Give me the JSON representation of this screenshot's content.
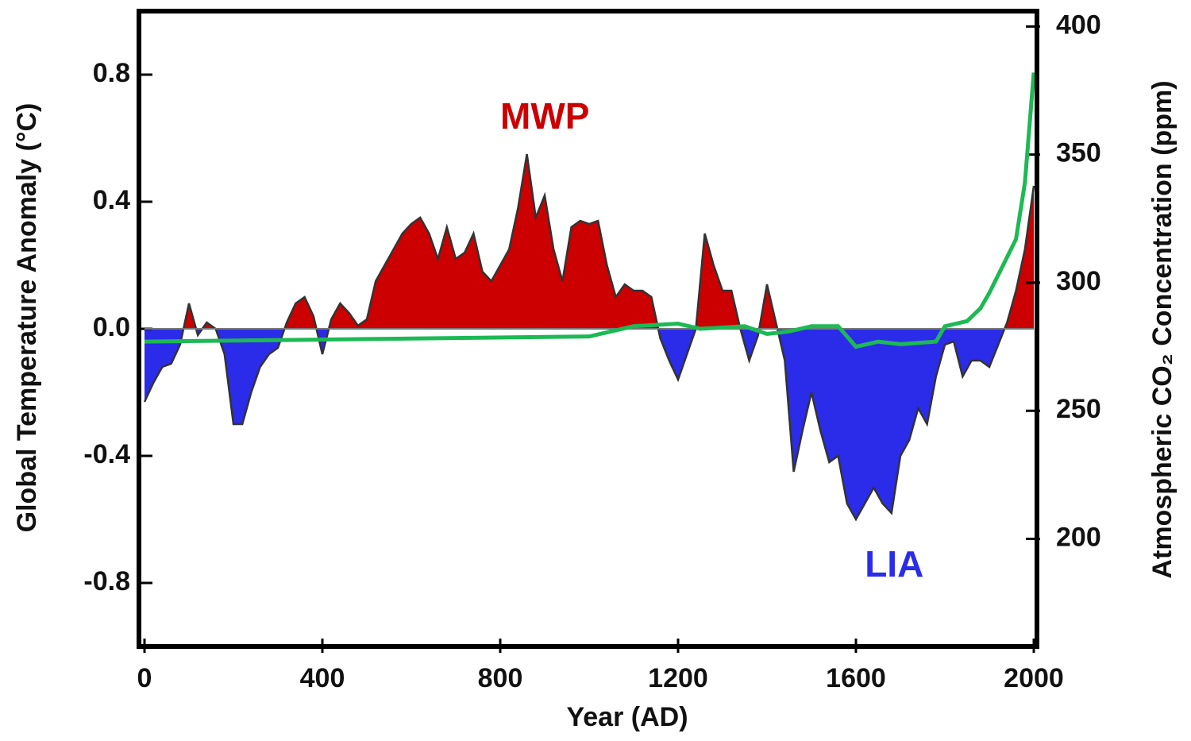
{
  "chart_data": {
    "type": "area",
    "xlabel": "Year (AD)",
    "ylabel": "Global Temperature Anomaly (°C)",
    "y2label": "Atmospheric CO₂ Concentration (ppm)",
    "xlim": [
      0,
      2000
    ],
    "xticks": [
      0,
      400,
      800,
      1200,
      1600,
      2000
    ],
    "ylim": [
      -1,
      1
    ],
    "yticks": [
      -0.8,
      -0.4,
      {
        "value": 0,
        "label": "0.0"
      },
      0.4,
      0.8
    ],
    "y2lim": [
      158,
      406
    ],
    "y2ticks": [
      200,
      250,
      300,
      350,
      400
    ],
    "annotations": [
      {
        "text": "MWP",
        "color": "#cc0000",
        "x": 800,
        "y": 0.66
      },
      {
        "text": "LIA",
        "color": "#2b2bea",
        "x": 1620,
        "y": -0.75
      }
    ],
    "series": [
      {
        "name": "Temperature anomaly",
        "positive_color": "#cc0000",
        "negative_color": "#2b2bea",
        "x": [
          0,
          20,
          40,
          60,
          80,
          100,
          120,
          140,
          160,
          180,
          200,
          220,
          240,
          260,
          280,
          300,
          320,
          340,
          360,
          380,
          400,
          420,
          440,
          460,
          480,
          500,
          520,
          540,
          560,
          580,
          600,
          620,
          640,
          660,
          680,
          700,
          720,
          740,
          760,
          780,
          800,
          820,
          840,
          860,
          880,
          900,
          920,
          940,
          960,
          980,
          1000,
          1020,
          1040,
          1060,
          1080,
          1100,
          1120,
          1140,
          1160,
          1180,
          1200,
          1220,
          1240,
          1260,
          1280,
          1300,
          1320,
          1340,
          1360,
          1380,
          1400,
          1420,
          1440,
          1460,
          1480,
          1500,
          1520,
          1540,
          1560,
          1580,
          1600,
          1620,
          1640,
          1660,
          1680,
          1700,
          1720,
          1740,
          1760,
          1780,
          1800,
          1820,
          1840,
          1860,
          1880,
          1900,
          1920,
          1940,
          1960,
          1980,
          2000
        ],
        "values": [
          -0.23,
          -0.17,
          -0.12,
          -0.11,
          -0.05,
          0.08,
          -0.02,
          0.02,
          0,
          -0.08,
          -0.3,
          -0.3,
          -0.2,
          -0.12,
          -0.08,
          -0.06,
          0.02,
          0.08,
          0.1,
          0.04,
          -0.08,
          0.03,
          0.08,
          0.05,
          0.01,
          0.03,
          0.15,
          0.2,
          0.25,
          0.3,
          0.33,
          0.35,
          0.3,
          0.22,
          0.32,
          0.22,
          0.24,
          0.3,
          0.18,
          0.15,
          0.2,
          0.25,
          0.38,
          0.55,
          0.35,
          0.42,
          0.25,
          0.15,
          0.32,
          0.34,
          0.33,
          0.34,
          0.2,
          0.1,
          0.14,
          0.12,
          0.12,
          0.1,
          -0.03,
          -0.1,
          -0.16,
          -0.08,
          0,
          0.3,
          0.2,
          0.12,
          0.12,
          0,
          -0.1,
          -0.02,
          0.14,
          0.02,
          -0.1,
          -0.45,
          -0.32,
          -0.2,
          -0.32,
          -0.42,
          -0.4,
          -0.55,
          -0.6,
          -0.55,
          -0.5,
          -0.55,
          -0.58,
          -0.4,
          -0.35,
          -0.25,
          -0.3,
          -0.15,
          -0.05,
          -0.04,
          -0.15,
          -0.1,
          -0.1,
          -0.12,
          -0.05,
          0.02,
          0.12,
          0.25,
          0.45
        ]
      },
      {
        "name": "CO₂",
        "color": "#1db954",
        "axis": "y2",
        "x": [
          0,
          500,
          1000,
          1100,
          1200,
          1250,
          1350,
          1400,
          1450,
          1500,
          1560,
          1600,
          1650,
          1700,
          1780,
          1800,
          1850,
          1880,
          1900,
          1920,
          1940,
          1960,
          1980,
          2000
        ],
        "values": [
          277,
          278,
          279,
          283,
          284,
          282,
          283,
          280,
          281,
          283,
          283,
          275,
          277,
          276,
          277,
          283,
          285,
          290,
          296,
          303,
          310,
          317,
          339,
          382
        ]
      }
    ]
  }
}
